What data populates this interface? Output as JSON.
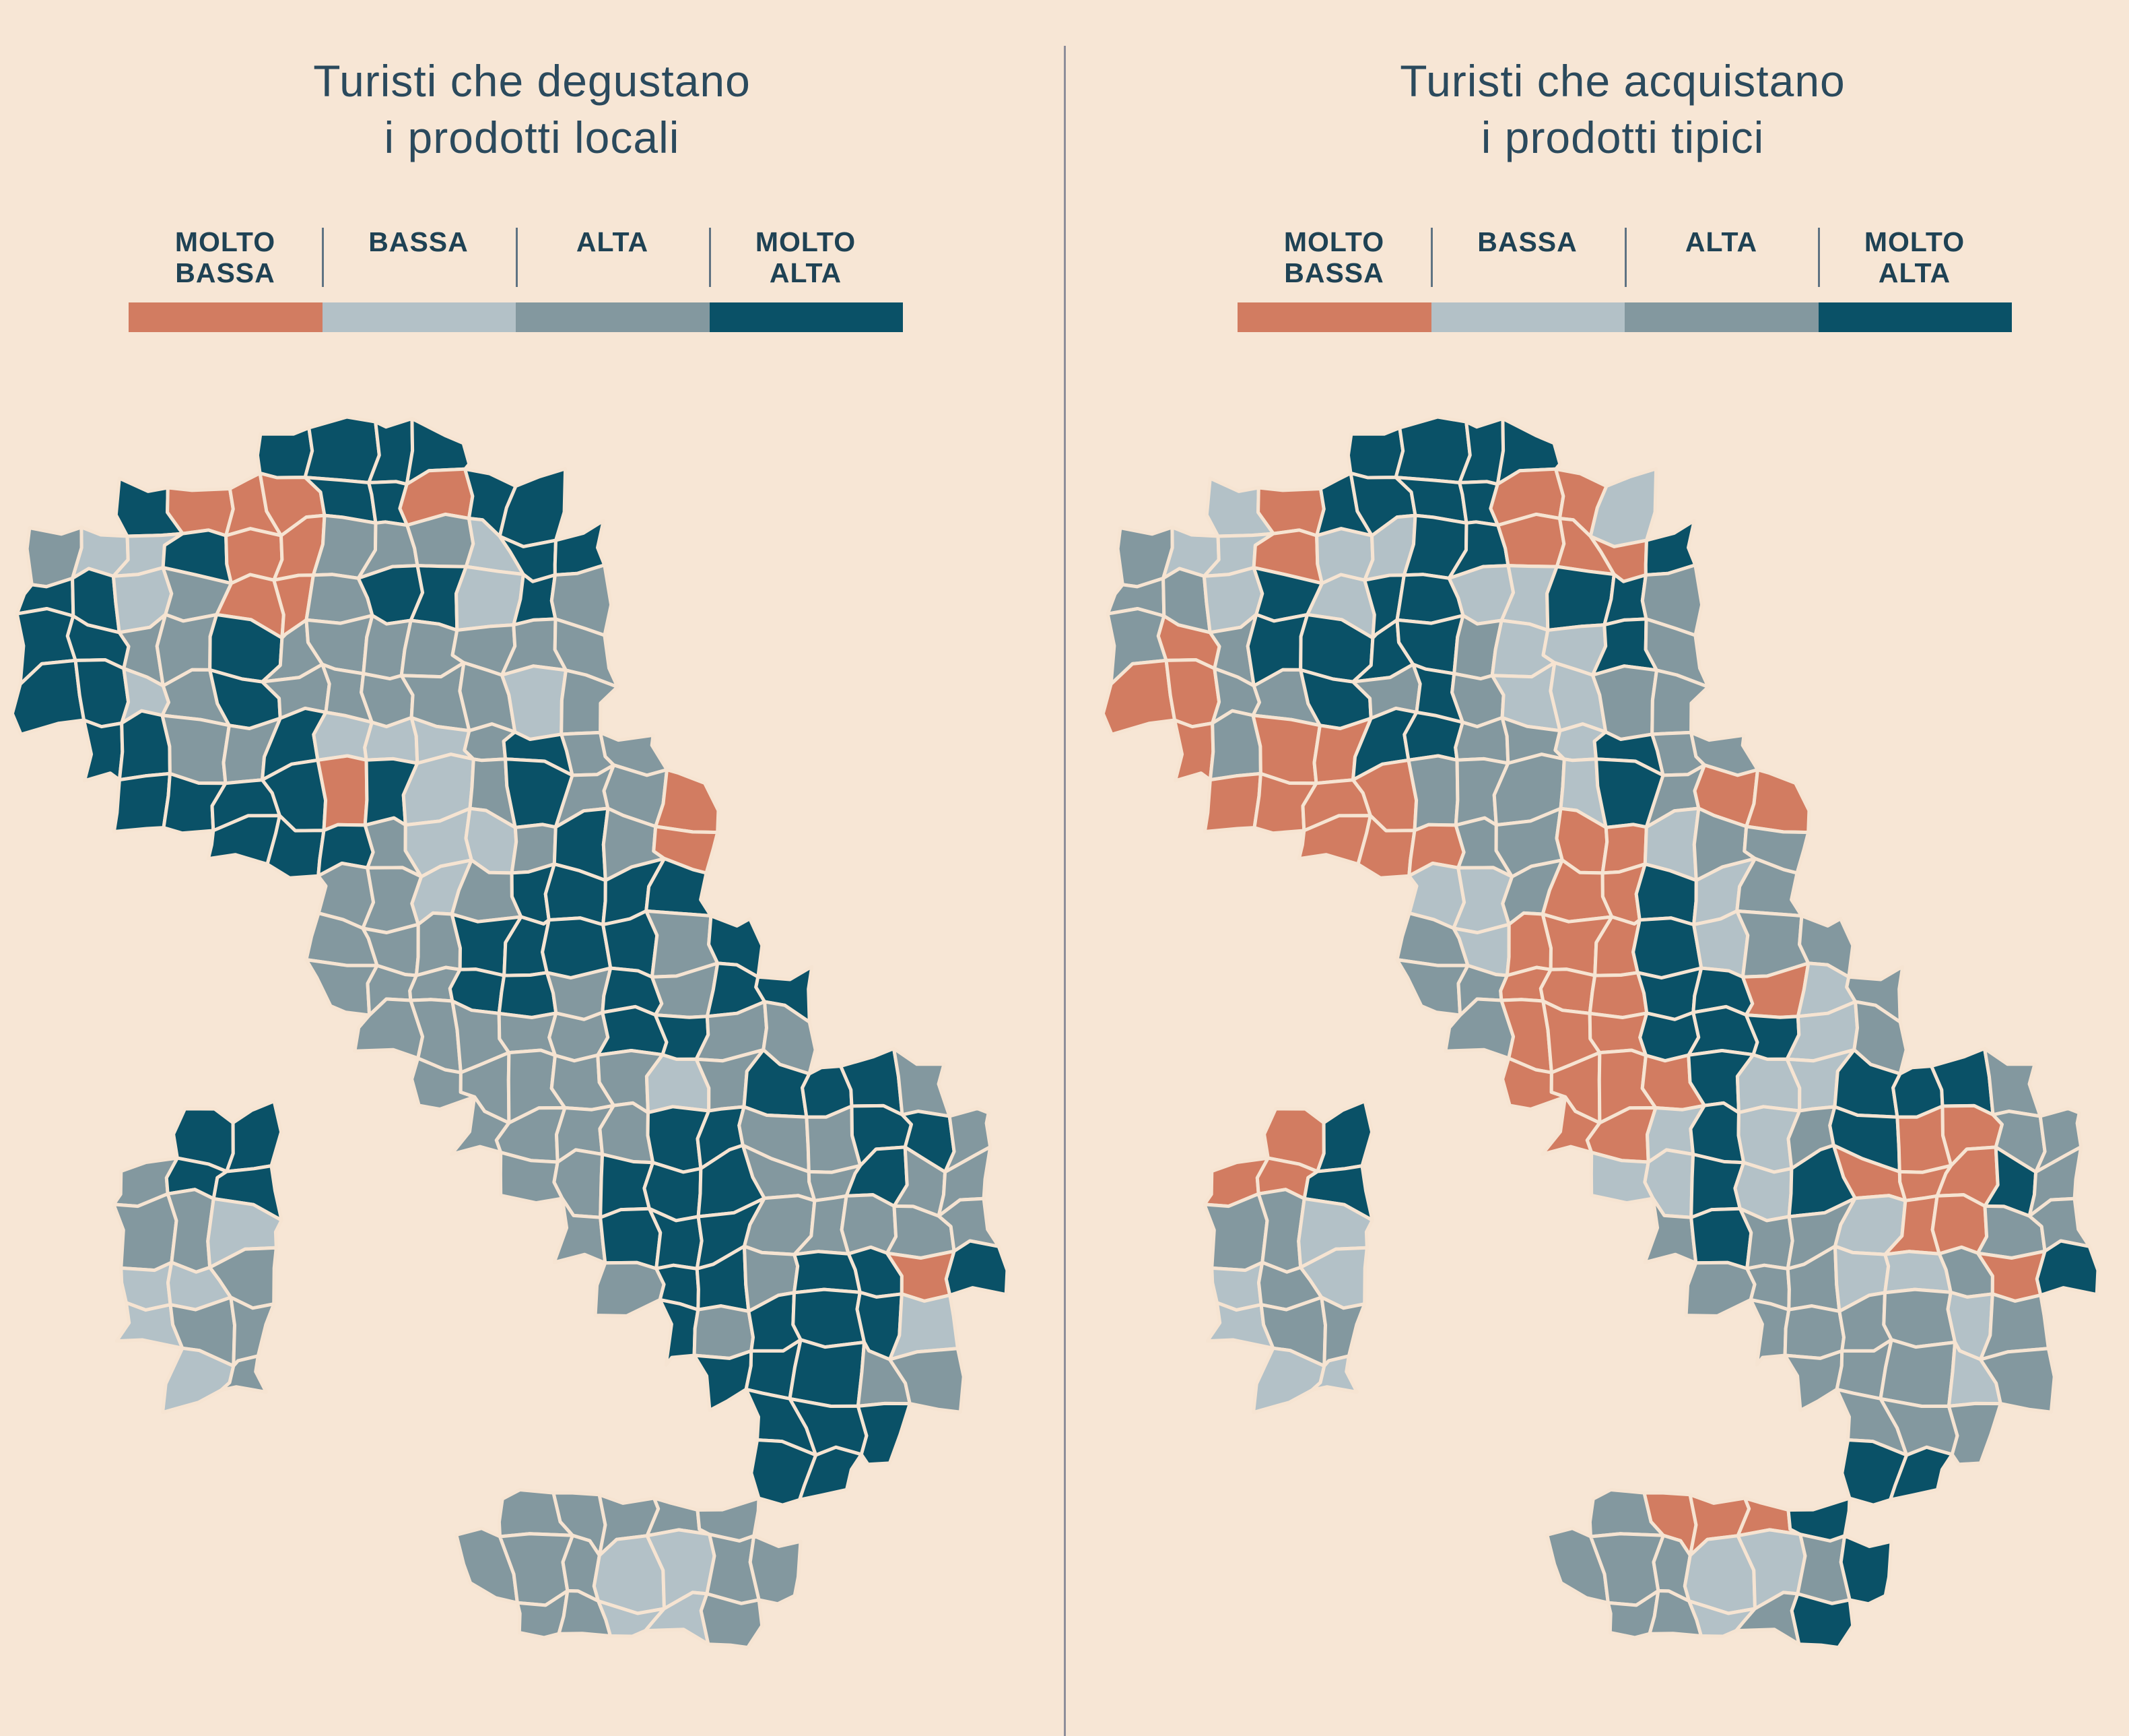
{
  "theme": {
    "background": "#f7e6d5",
    "title_ink": "#2b4a5d",
    "label_ink": "#1f4254",
    "divider_color": "#8d8d99",
    "separator_color": "#5f7383",
    "cell_border": "#f6e4d2"
  },
  "legend": {
    "items": [
      {
        "id": "molto-bassa",
        "l1": "MOLTO",
        "l2": "BASSA"
      },
      {
        "id": "bassa",
        "l1": "BASSA",
        "l2": ""
      },
      {
        "id": "alta",
        "l1": "ALTA",
        "l2": ""
      },
      {
        "id": "molto-alta",
        "l1": "MOLTO",
        "l2": "ALTA"
      }
    ],
    "colors": [
      "#d27c61",
      "#b3c1c7",
      "#83989f",
      "#0a5167"
    ],
    "scale_note": "4-class choropleth: 1=MOLTO BASSA (salmon), 2=BASSA (light grey-blue), 3=ALTA (grey-teal), 4=MOLTO ALTA (dark teal)"
  },
  "maps": [
    {
      "id": "degustano",
      "title_line1": "Turisti che degustano",
      "title_line2": "i prodotti locali",
      "grid": [
        ".....4444...........",
        "..411144144.........",
        "322411333244........",
        "442311344243........",
        "443343333333........",
        "442343333323........",
        ".443342223433.......",
        "..444414234331......",
        "....4443223431......",
        "......33234444......",
        "......333444434.....",
        "......3334434344....",
        ".......333334433....",
        "........33333234443.",
        "...44....33334433443",
        "..344.....3344433433",
        "..332......344433333",
        "..223.......34434414",
        "..233........434442.",
        "...23.........44433.",
        "...............444..",
        "...............44...",
        "..........33333.....",
        ".........3332233....",
        "..........33223....."
      ]
    },
    {
      "id": "acquistano",
      "title_line1": "Turisti che acquistano",
      "title_line2": "i prodotti tipici",
      "grid": [
        ".....4444...........",
        "..214444112.........",
        "322122441114........",
        "332424422443........",
        "313444432243........",
        "113343432233........",
        ".131144332433.......",
        "..111133324311......",
        "....1113311233......",
        "......22311423......",
        "......321114233.....",
        "......3311144123....",
        ".......311144423....",
        "........11114224443.",
        "...14....11242341133",
        "..114.....2242411143",
        "..332......343321133",
        "..232.......33322314",
        "..233........333323.",
        "...22.........33323.",
        "...............333..",
        "...............44...",
        "..........31114.....",
        ".........3332234....",
        "..........33234....."
      ]
    }
  ]
}
